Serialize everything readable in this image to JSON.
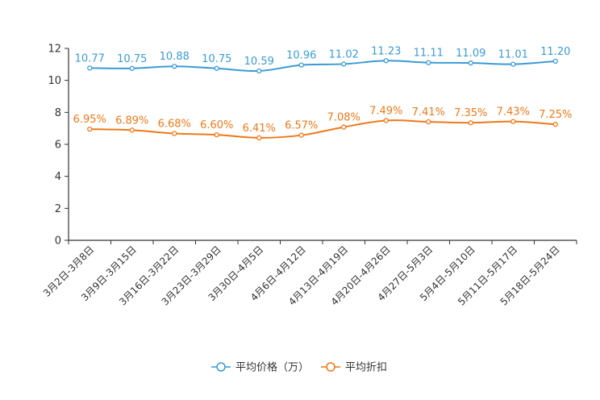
{
  "chart_data": {
    "type": "line",
    "title": "",
    "xlabel": "",
    "ylabel": "",
    "ylim": [
      0,
      12
    ],
    "yticks": [
      0,
      2,
      4,
      6,
      8,
      10,
      12
    ],
    "grid": false,
    "legend_position": "bottom-center",
    "categories": [
      "3月2日-3月8日",
      "3月9日-3月15日",
      "3月16日-3月22日",
      "3月23日-3月29日",
      "3月30日-4月5日",
      "4月6日-4月12日",
      "4月13日-4月19日",
      "4月20日-4月26日",
      "4月27日-5月3日",
      "5月4日-5月10日",
      "5月11日-5月17日",
      "5月18日-5月24日"
    ],
    "series": [
      {
        "name": "平均价格（万）",
        "color": "#3a9bd5",
        "values": [
          10.77,
          10.75,
          10.88,
          10.75,
          10.59,
          10.96,
          11.02,
          11.23,
          11.11,
          11.09,
          11.01,
          11.2
        ],
        "labels": [
          "10.77",
          "10.75",
          "10.88",
          "10.75",
          "10.59",
          "10.96",
          "11.02",
          "11.23",
          "11.11",
          "11.09",
          "11.01",
          "11.20"
        ]
      },
      {
        "name": "平均折扣",
        "color": "#f07818",
        "values": [
          6.95,
          6.89,
          6.68,
          6.6,
          6.41,
          6.57,
          7.08,
          7.49,
          7.41,
          7.35,
          7.43,
          7.25
        ],
        "labels": [
          "6.95%",
          "6.89%",
          "6.68%",
          "6.60%",
          "6.41%",
          "6.57%",
          "7.08%",
          "7.49%",
          "7.41%",
          "7.35%",
          "7.43%",
          "7.25%"
        ]
      }
    ]
  }
}
